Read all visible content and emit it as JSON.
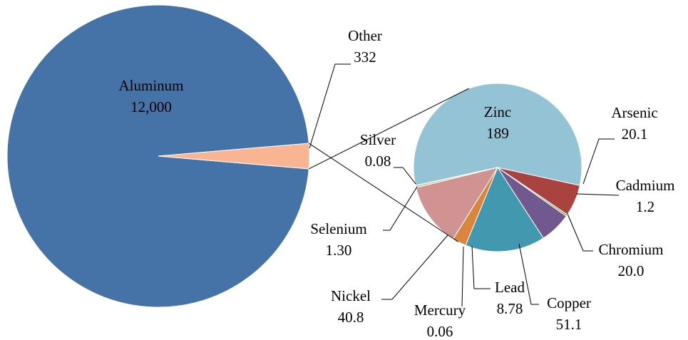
{
  "chart_data": [
    {
      "type": "pie",
      "categories": [
        "Aluminum",
        "Other"
      ],
      "values": [
        12000,
        332
      ],
      "value_labels": [
        "12,000",
        "332"
      ],
      "colors": [
        "#4572a7",
        "#f9b591"
      ]
    },
    {
      "type": "pie",
      "categories": [
        "Zinc",
        "Arsenic",
        "Cadmium",
        "Chromium",
        "Copper",
        "Lead",
        "Mercury",
        "Nickel",
        "Selenium",
        "Silver"
      ],
      "values": [
        189,
        20.1,
        1.2,
        20.0,
        51.1,
        8.78,
        0.06,
        40.8,
        1.3,
        0.08
      ],
      "value_labels": [
        "189",
        "20.1",
        "1.2",
        "20.0",
        "51.1",
        "8.78",
        "0.06",
        "40.8",
        "1.30",
        "0.08"
      ],
      "colors": [
        "#93c3d5",
        "#a8433f",
        "#8aa64a",
        "#71588f",
        "#4198af",
        "#db843d",
        "#93a9cf",
        "#d09392",
        "#b9cd96",
        "#a99bbd"
      ]
    }
  ]
}
